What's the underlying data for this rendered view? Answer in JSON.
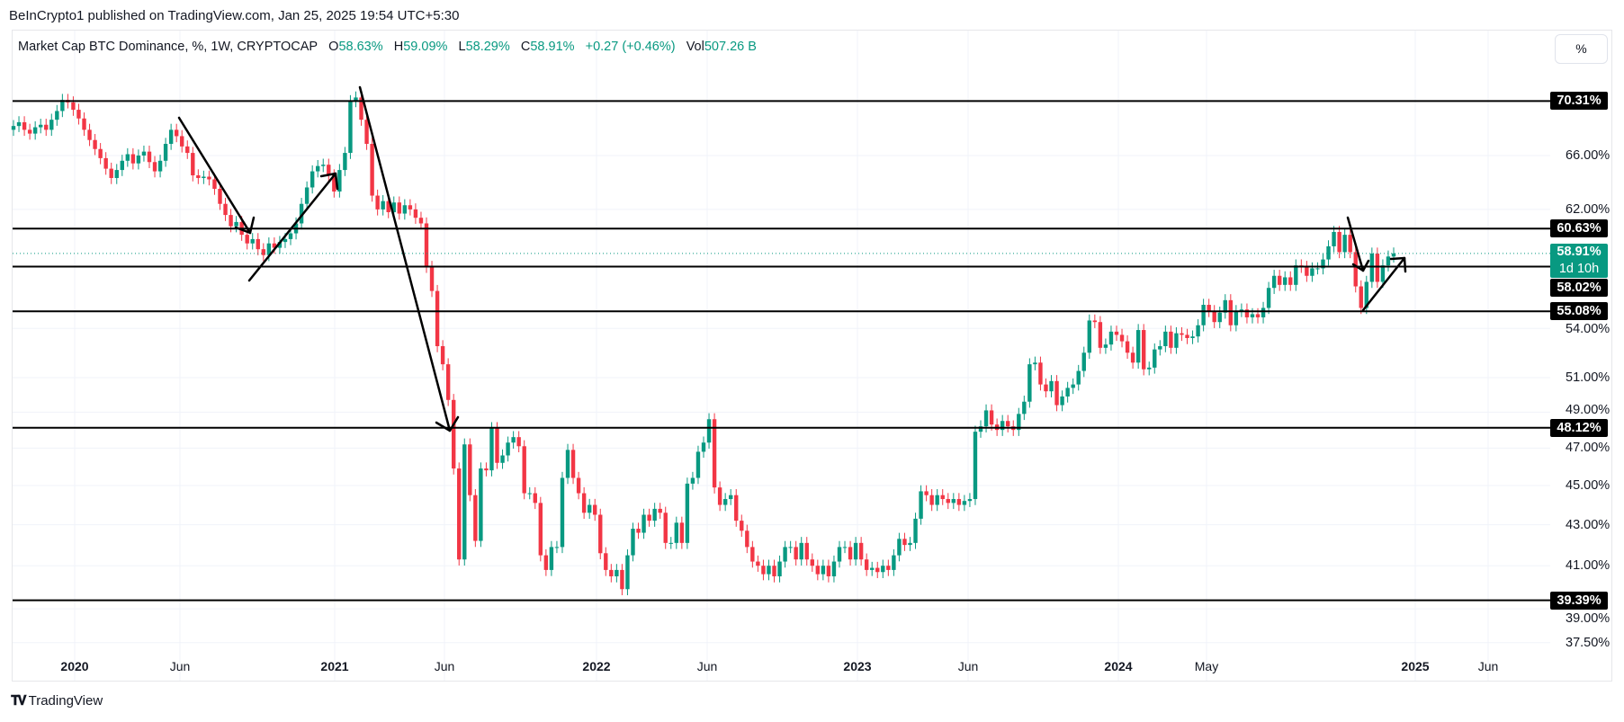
{
  "header": {
    "published": "BeInCrypto1 published on TradingView.com, Jan 25, 2025 19:54 UTC+5:30"
  },
  "legend": {
    "symbol": "Market Cap BTC Dominance, %, 1W, CRYPTOCAP",
    "o_label": "O",
    "o": "58.63%",
    "h_label": "H",
    "h": "59.09%",
    "l_label": "L",
    "l": "58.29%",
    "c_label": "C",
    "c": "58.91%",
    "change": "+0.27 (+0.46%)",
    "vol_label": "Vol",
    "vol": "507.26 B"
  },
  "scale_button": "%",
  "footer": {
    "brand": "TradingView",
    "logo_icon": "tradingview-logo-icon"
  },
  "chart_data": {
    "type": "candlestick",
    "interval": "1W",
    "y_scale": "log",
    "ylim": [
      37.1,
      76.3
    ],
    "grid": true,
    "colors": {
      "up": "#089981",
      "down": "#f23645",
      "level_line": "#000000",
      "last_price": "#089981"
    },
    "first_open": 68.0,
    "closes": [
      68.3,
      68.6,
      68.0,
      67.7,
      68.2,
      68.4,
      68.0,
      68.8,
      69.5,
      70.4,
      70.2,
      69.6,
      68.9,
      68.0,
      67.2,
      66.5,
      65.8,
      65.0,
      64.3,
      64.9,
      65.6,
      66.1,
      65.4,
      66.0,
      66.3,
      65.5,
      64.8,
      65.6,
      66.9,
      68.0,
      67.5,
      66.7,
      66.2,
      64.5,
      64.3,
      64.4,
      64.2,
      63.5,
      62.4,
      61.6,
      60.8,
      61.1,
      60.2,
      59.6,
      59.9,
      59.2,
      58.8,
      59.6,
      59.3,
      59.7,
      59.9,
      60.3,
      61.0,
      62.4,
      63.6,
      64.8,
      65.2,
      65.3,
      64.5,
      63.3,
      64.9,
      66.2,
      70.3,
      70.6,
      68.8,
      66.9,
      63.0,
      62.0,
      62.6,
      61.8,
      62.5,
      61.7,
      62.3,
      62.0,
      61.4,
      61.0,
      58.0,
      56.4,
      52.9,
      51.8,
      49.7,
      45.9,
      41.3,
      47.2,
      44.5,
      42.2,
      45.9,
      45.8,
      48.1,
      46.2,
      46.6,
      47.3,
      47.6,
      47.1,
      44.6,
      44.6,
      44.1,
      41.5,
      40.8,
      41.9,
      41.9,
      45.4,
      46.9,
      45.4,
      44.6,
      43.6,
      44.0,
      43.5,
      41.6,
      40.8,
      40.5,
      40.8,
      39.9,
      41.5,
      42.8,
      42.6,
      43.5,
      43.2,
      43.8,
      43.6,
      42.1,
      42.1,
      43.1,
      42.1,
      45.1,
      45.4,
      46.8,
      47.3,
      48.6,
      44.9,
      44.0,
      44.3,
      44.5,
      43.2,
      42.7,
      41.9,
      41.2,
      41.0,
      40.6,
      41.0,
      40.5,
      41.2,
      41.9,
      41.9,
      41.3,
      42.1,
      41.3,
      41.0,
      40.6,
      41.0,
      40.5,
      41.2,
      41.9,
      41.9,
      41.3,
      42.1,
      41.3,
      40.8,
      40.9,
      40.7,
      41.0,
      40.8,
      41.5,
      42.3,
      42.0,
      42.1,
      43.3,
      44.7,
      44.5,
      44.0,
      44.5,
      44.3,
      44.1,
      44.3,
      44.0,
      44.2,
      44.3,
      47.9,
      48.2,
      49.1,
      48.3,
      48.0,
      48.5,
      48.2,
      48.0,
      48.9,
      49.6,
      51.8,
      51.9,
      50.6,
      50.2,
      50.8,
      49.4,
      49.9,
      50.4,
      50.6,
      51.4,
      52.5,
      54.5,
      54.4,
      52.8,
      53.0,
      53.8,
      53.6,
      53.2,
      52.5,
      51.9,
      53.9,
      51.5,
      51.6,
      52.7,
      52.9,
      53.8,
      52.8,
      53.7,
      53.6,
      53.4,
      53.5,
      54.2,
      55.5,
      55.1,
      54.4,
      55.0,
      55.8,
      54.2,
      55.1,
      55.2,
      54.7,
      54.9,
      54.7,
      55.3,
      56.6,
      57.4,
      56.8,
      57.3,
      56.8,
      58.1,
      58.0,
      57.4,
      57.9,
      57.9,
      58.5,
      59.4,
      60.4,
      59.0,
      60.2,
      59.0,
      56.7,
      55.3,
      57.0,
      58.9,
      57.0,
      58.1,
      58.7,
      58.91
    ],
    "price_ticks": [
      {
        "value": 66,
        "label": "66.00%"
      },
      {
        "value": 62,
        "label": "62.00%"
      },
      {
        "value": 54,
        "label": "54.00%"
      },
      {
        "value": 51,
        "label": "51.00%"
      },
      {
        "value": 49,
        "label": "49.00%"
      },
      {
        "value": 47,
        "label": "47.00%"
      },
      {
        "value": 45,
        "label": "45.00%"
      },
      {
        "value": 43,
        "label": "43.00%"
      },
      {
        "value": 41,
        "label": "41.00%"
      },
      {
        "value": 39,
        "label": "39.00%"
      },
      {
        "value": 37.5,
        "label": "37.50%"
      }
    ],
    "levels": [
      {
        "value": 70.31,
        "label": "70.31%"
      },
      {
        "value": 60.63,
        "label": "60.63%"
      },
      {
        "value": 58.02,
        "label": "58.02%"
      },
      {
        "value": 55.08,
        "label": "55.08%"
      },
      {
        "value": 48.12,
        "label": "48.12%"
      },
      {
        "value": 39.39,
        "label": "39.39%"
      }
    ],
    "last_price": {
      "value": 58.91,
      "label": "58.91%",
      "countdown": "1d 10h"
    },
    "time_labels": [
      {
        "text": "2020",
        "bold": true
      },
      {
        "text": "Jun",
        "bold": false
      },
      {
        "text": "2021",
        "bold": true
      },
      {
        "text": "Jun",
        "bold": false
      },
      {
        "text": "2022",
        "bold": true
      },
      {
        "text": "Jun",
        "bold": false
      },
      {
        "text": "2023",
        "bold": true
      },
      {
        "text": "Jun",
        "bold": false
      },
      {
        "text": "2024",
        "bold": true
      },
      {
        "text": "May",
        "bold": false
      },
      {
        "text": "2025",
        "bold": true
      },
      {
        "text": "Jun",
        "bold": false
      }
    ]
  }
}
